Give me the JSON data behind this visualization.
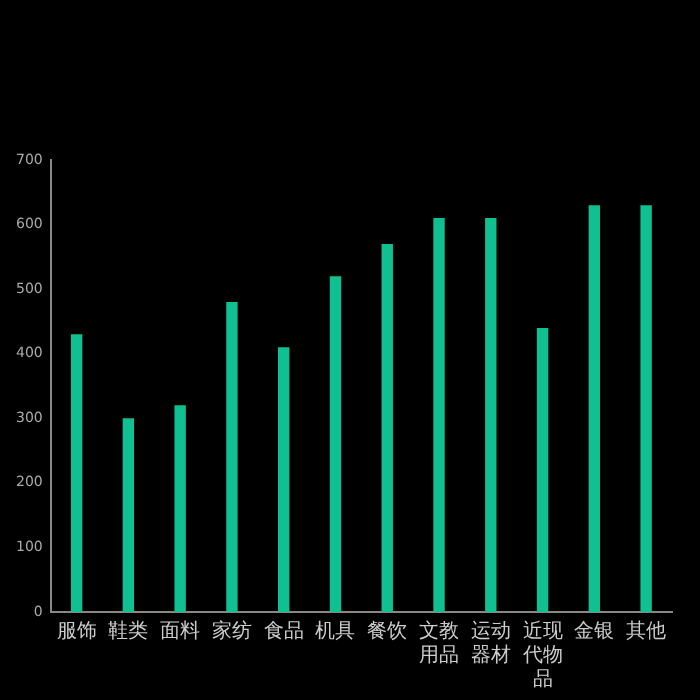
{
  "chart_data": {
    "type": "bar",
    "categories": [
      "服饰",
      "鞋类",
      "面料",
      "家纺",
      "食品",
      "机具",
      "餐饮",
      "文教用品",
      "运动器材",
      "近现代物品",
      "金银",
      "其他"
    ],
    "values": [
      430,
      300,
      320,
      480,
      410,
      520,
      570,
      610,
      610,
      440,
      630,
      630
    ],
    "color": "#10c090",
    "ylim": [
      0,
      700
    ],
    "yticks": [
      0,
      100,
      200,
      300,
      400,
      500,
      600,
      700
    ],
    "grid": false,
    "legend": false
  }
}
